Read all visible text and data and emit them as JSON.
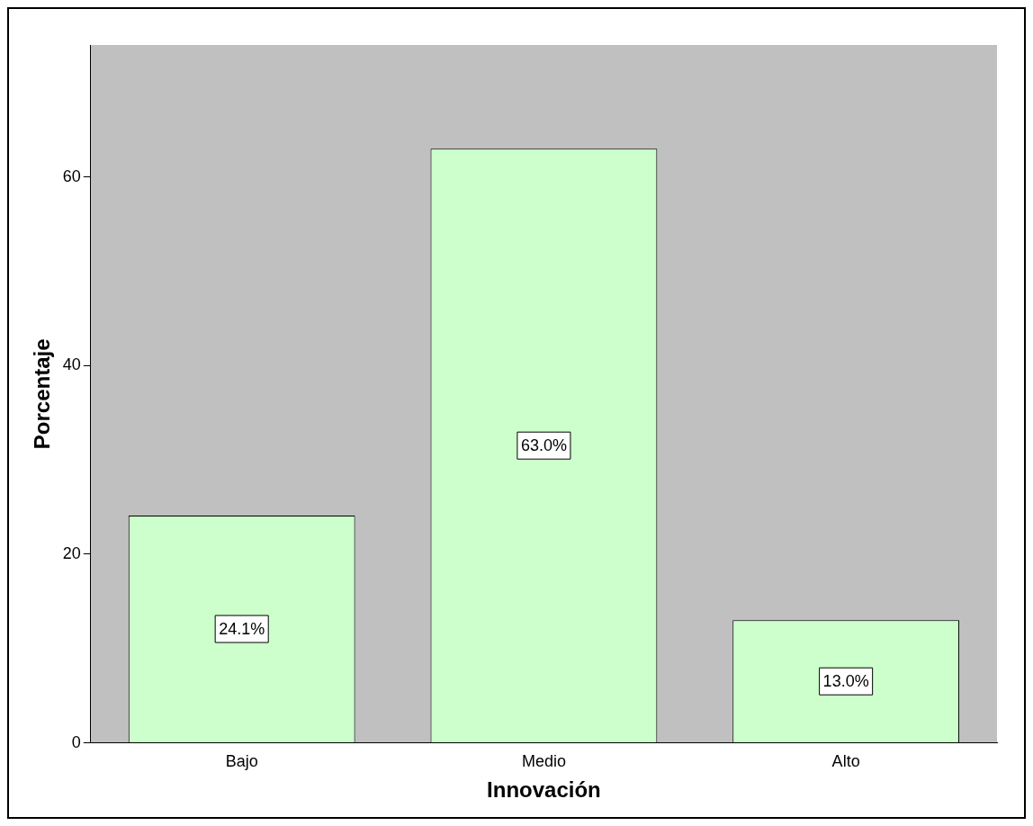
{
  "chart_data": {
    "type": "bar",
    "xlabel": "Innovación",
    "ylabel": "Porcentaje",
    "categories": [
      "Bajo",
      "Medio",
      "Alto"
    ],
    "values": [
      24.1,
      63.0,
      13.0
    ],
    "value_labels": [
      "24.1%",
      "63.0%",
      "13.0%"
    ],
    "color": "#ccffcc",
    "ylim": [
      0,
      74
    ],
    "yticks": [
      0,
      20,
      40,
      60
    ],
    "grid": false,
    "legend": false
  }
}
